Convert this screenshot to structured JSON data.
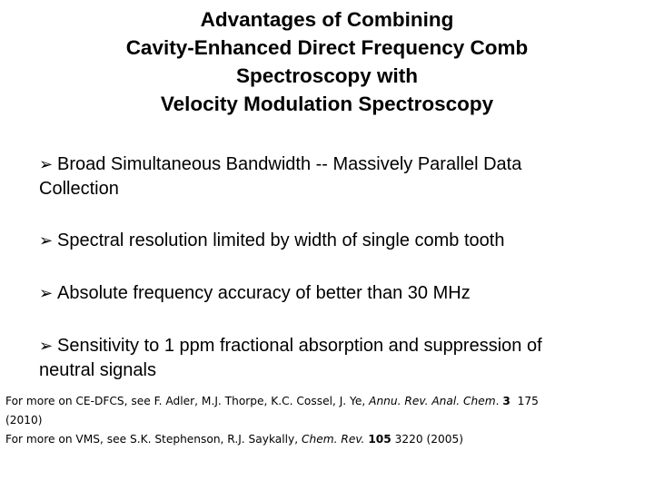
{
  "title": {
    "line1": "Advantages of Combining",
    "line2": "Cavity-Enhanced Direct Frequency Comb",
    "line3": "Spectroscopy with",
    "line4": "Velocity Modulation Spectroscopy"
  },
  "bullet_icon": "➢",
  "bullets": [
    {
      "line1": "Broad Simultaneous Bandwidth  -- Massively Parallel Data",
      "line2": "Collection"
    },
    {
      "line1": "Spectral resolution limited by width of single comb tooth"
    },
    {
      "line1": "Absolute frequency accuracy of better than 30 MHz"
    },
    {
      "line1": "Sensitivity to 1 ppm fractional absorption and suppression of",
      "line2": "neutral signals"
    }
  ],
  "references": {
    "ref1": {
      "prefix": "For more on CE-DFCS, see F. Adler, M.J. Thorpe, K.C. Cossel, J. Ye, ",
      "journal": "Annu. Rev. Anal. Chem",
      "dot": ". ",
      "volume": "3",
      "pages": "175",
      "year": "(2010)"
    },
    "ref2": {
      "prefix": "For more on VMS, see S.K. Stephenson, R.J. Saykally, ",
      "journal": "Chem. Rev.",
      "volume": "105",
      "rest": "3220 (2005)"
    }
  }
}
